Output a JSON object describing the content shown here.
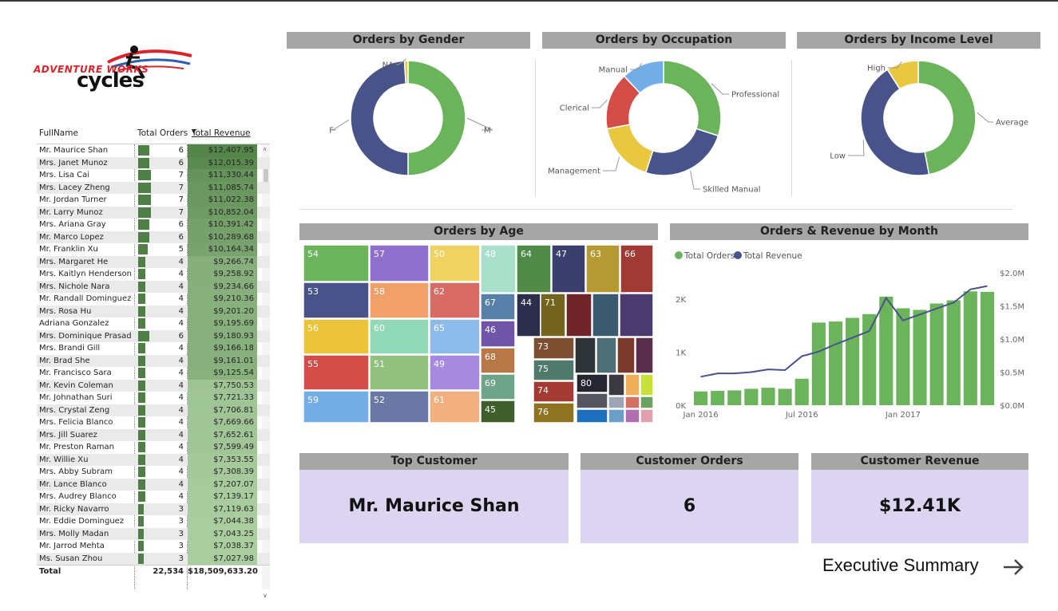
{
  "logo": {
    "line1": "ADVENTURE WORKS",
    "line2": "cycles"
  },
  "table": {
    "headers": {
      "name": "FullName",
      "orders": "Total Orders",
      "revenue": "Total Revenue"
    },
    "rows": [
      {
        "name": "Mr. Maurice Shan",
        "orders": "6",
        "revenue": "$12,407.95"
      },
      {
        "name": "Mrs. Janet Munoz",
        "orders": "6",
        "revenue": "$12,015.39"
      },
      {
        "name": "Mrs. Lisa Cai",
        "orders": "7",
        "revenue": "$11,330.44"
      },
      {
        "name": "Mrs. Lacey Zheng",
        "orders": "7",
        "revenue": "$11,085.74"
      },
      {
        "name": "Mr. Jordan Turner",
        "orders": "7",
        "revenue": "$11,022.38"
      },
      {
        "name": "Mr. Larry Munoz",
        "orders": "7",
        "revenue": "$10,852.04"
      },
      {
        "name": "Mrs. Ariana Gray",
        "orders": "6",
        "revenue": "$10,391.42"
      },
      {
        "name": "Mr. Marco Lopez",
        "orders": "6",
        "revenue": "$10,289.68"
      },
      {
        "name": "Mr. Franklin Xu",
        "orders": "5",
        "revenue": "$10,164.34"
      },
      {
        "name": "Mrs. Margaret He",
        "orders": "4",
        "revenue": "$9,266.74"
      },
      {
        "name": "Mrs. Kaitlyn Henderson",
        "orders": "4",
        "revenue": "$9,258.92"
      },
      {
        "name": "Mrs. Nichole Nara",
        "orders": "4",
        "revenue": "$9,234.66"
      },
      {
        "name": "Mr. Randall Dominguez",
        "orders": "4",
        "revenue": "$9,210.36"
      },
      {
        "name": "Mrs. Rosa Hu",
        "orders": "4",
        "revenue": "$9,201.20"
      },
      {
        "name": "Adriana Gonzalez",
        "orders": "4",
        "revenue": "$9,195.69"
      },
      {
        "name": "Mrs. Dominique Prasad",
        "orders": "6",
        "revenue": "$9,180.93"
      },
      {
        "name": "Mrs. Brandi Gill",
        "orders": "4",
        "revenue": "$9,166.18"
      },
      {
        "name": "Mr. Brad She",
        "orders": "4",
        "revenue": "$9,161.01"
      },
      {
        "name": "Mr. Francisco Sara",
        "orders": "4",
        "revenue": "$9,125.54"
      },
      {
        "name": "Mr. Kevin Coleman",
        "orders": "4",
        "revenue": "$7,750.53"
      },
      {
        "name": "Mr. Johnathan Suri",
        "orders": "4",
        "revenue": "$7,721.33"
      },
      {
        "name": "Mrs. Crystal Zeng",
        "orders": "4",
        "revenue": "$7,706.81"
      },
      {
        "name": "Mrs. Felicia Blanco",
        "orders": "4",
        "revenue": "$7,669.66"
      },
      {
        "name": "Mrs. Jill Suarez",
        "orders": "4",
        "revenue": "$7,652.61"
      },
      {
        "name": "Mr. Preston Raman",
        "orders": "4",
        "revenue": "$7,599.49"
      },
      {
        "name": "Mr. Willie Xu",
        "orders": "4",
        "revenue": "$7,353.55"
      },
      {
        "name": "Mrs. Abby Subram",
        "orders": "4",
        "revenue": "$7,308.39"
      },
      {
        "name": "Mr. Lance Blanco",
        "orders": "4",
        "revenue": "$7,207.07"
      },
      {
        "name": "Mrs. Audrey Blanco",
        "orders": "4",
        "revenue": "$7,139.17"
      },
      {
        "name": "Mr. Ricky Navarro",
        "orders": "3",
        "revenue": "$7,119.63"
      },
      {
        "name": "Mr. Eddie Dominguez",
        "orders": "3",
        "revenue": "$7,044.38"
      },
      {
        "name": "Mrs. Molly Madan",
        "orders": "3",
        "revenue": "$7,043.25"
      },
      {
        "name": "Mr. Jarrod Mehta",
        "orders": "3",
        "revenue": "$7,038.37"
      },
      {
        "name": "Ms. Susan Zhou",
        "orders": "3",
        "revenue": "$7,027.98"
      }
    ],
    "total": {
      "label": "Total",
      "orders": "22,534",
      "revenue": "$18,509,633.20"
    }
  },
  "charts_titles": {
    "gender": "Orders by Gender",
    "occupation": "Orders by Occupation",
    "income": "Orders by Income Level",
    "age": "Orders by Age",
    "month": "Orders & Revenue by Month"
  },
  "colors": {
    "green": "#6cb45c",
    "navy": "#485489",
    "yellow": "#e9c740",
    "red": "#d24d47",
    "blue": "#73ade5",
    "bar_dark": "#4f7f46",
    "card_bg": "#dcd4f0",
    "header_bg": "#a6a6a6"
  },
  "chart_data": [
    {
      "type": "pie",
      "title": "Orders by Gender",
      "slices": [
        {
          "label": "M",
          "value": 50,
          "color": "#6cb45c"
        },
        {
          "label": "F",
          "value": 49,
          "color": "#485489"
        },
        {
          "label": "NA",
          "value": 1,
          "color": "#e9c740"
        }
      ]
    },
    {
      "type": "pie",
      "title": "Orders by Occupation",
      "slices": [
        {
          "label": "Professional",
          "value": 30,
          "color": "#6cb45c"
        },
        {
          "label": "Skilled Manual",
          "value": 25,
          "color": "#485489"
        },
        {
          "label": "Management",
          "value": 17,
          "color": "#e9c740"
        },
        {
          "label": "Clerical",
          "value": 16,
          "color": "#d24d47"
        },
        {
          "label": "Manual",
          "value": 12,
          "color": "#73ade5"
        }
      ]
    },
    {
      "type": "pie",
      "title": "Orders by Income Level",
      "slices": [
        {
          "label": "Average",
          "value": 47,
          "color": "#6cb45c"
        },
        {
          "label": "Low",
          "value": 44,
          "color": "#485489"
        },
        {
          "label": "High",
          "value": 9,
          "color": "#e9c740"
        }
      ]
    },
    {
      "type": "heatmap",
      "title": "Orders by Age",
      "cells": [
        {
          "label": "54",
          "color": "#6cb45c"
        },
        {
          "label": "57",
          "color": "#8e6fcc"
        },
        {
          "label": "50",
          "color": "#efd262"
        },
        {
          "label": "48",
          "color": "#a8e0cc"
        },
        {
          "label": "64",
          "color": "#4f8a48"
        },
        {
          "label": "47",
          "color": "#3a3f6e"
        },
        {
          "label": "63",
          "color": "#b59a36"
        },
        {
          "label": "66",
          "color": "#a03a34"
        },
        {
          "label": "53",
          "color": "#485489"
        },
        {
          "label": "58",
          "color": "#f0a068"
        },
        {
          "label": "62",
          "color": "#d96b66"
        },
        {
          "label": "67",
          "color": "#5680a8"
        },
        {
          "label": "44",
          "color": "#2b2f4c"
        },
        {
          "label": "71",
          "color": "#74651e"
        },
        {
          "label": "56",
          "color": "#ebc43c"
        },
        {
          "label": "60",
          "color": "#91d9b9"
        },
        {
          "label": "65",
          "color": "#8dbbe9"
        },
        {
          "label": "46",
          "color": "#6e55a8"
        },
        {
          "label": "55",
          "color": "#d24d47"
        },
        {
          "label": "51",
          "color": "#92c07e"
        },
        {
          "label": "49",
          "color": "#a58ae0"
        },
        {
          "label": "68",
          "color": "#b87747"
        },
        {
          "label": "73",
          "color": "#7d4f31"
        },
        {
          "label": "75",
          "color": "#4f7a6c"
        },
        {
          "label": "59",
          "color": "#73ade5"
        },
        {
          "label": "52",
          "color": "#6b78a6"
        },
        {
          "label": "61",
          "color": "#f2b07e"
        },
        {
          "label": "69",
          "color": "#6ea489"
        },
        {
          "label": "74",
          "color": "#a33a33"
        },
        {
          "label": "80",
          "color": "#262633"
        },
        {
          "label": "45",
          "color": "#3e5f2c"
        },
        {
          "label": "76",
          "color": "#8e7422"
        }
      ]
    },
    {
      "type": "bar",
      "title": "Orders & Revenue by Month",
      "legend": [
        "Total Orders",
        "Total Revenue"
      ],
      "x_ticks": [
        "Jan 2016",
        "Jul 2016",
        "Jan 2017"
      ],
      "y_left_ticks": [
        "0K",
        "1K",
        "2K"
      ],
      "y_right_ticks": [
        "$0.0M",
        "$0.5M",
        "$1.0M",
        "$1.5M",
        "$2.0M"
      ],
      "ylim_left": [
        0,
        2500
      ],
      "ylim_right": [
        0,
        2000000
      ],
      "orders": [
        260,
        270,
        280,
        310,
        330,
        310,
        500,
        1560,
        1580,
        1650,
        1720,
        2050,
        1830,
        1800,
        1920,
        1980,
        2150,
        2140
      ],
      "revenue": [
        430000,
        480000,
        480000,
        500000,
        540000,
        530000,
        740000,
        810000,
        920000,
        1020000,
        1120000,
        1620000,
        1280000,
        1370000,
        1460000,
        1550000,
        1750000,
        1800000
      ]
    }
  ],
  "cards": {
    "top_customer": {
      "label": "Top Customer",
      "value": "Mr. Maurice Shan"
    },
    "customer_orders": {
      "label": "Customer Orders",
      "value": "6"
    },
    "customer_revenue": {
      "label": "Customer Revenue",
      "value": "$12.41K"
    }
  },
  "nav": {
    "executive_summary": "Executive Summary"
  }
}
